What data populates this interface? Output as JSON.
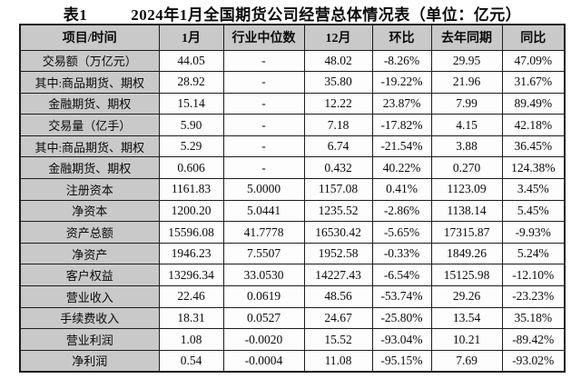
{
  "page": {
    "table_label": "表1",
    "title": "2024年1月全国期货公司经营总体情况表（单位：亿元）"
  },
  "chart_data": {
    "type": "table",
    "title": "2024年1月全国期货公司经营总体情况表（单位：亿元）",
    "columns": [
      "项目/时间",
      "1月",
      "行业中位数",
      "12月",
      "环比",
      "去年同期",
      "同比"
    ],
    "rows": [
      [
        "交易额（万亿元）",
        "44.05",
        "-",
        "48.02",
        "-8.26%",
        "29.95",
        "47.09%"
      ],
      [
        "其中:商品期货、期权",
        "28.92",
        "-",
        "35.80",
        "-19.22%",
        "21.96",
        "31.67%"
      ],
      [
        "金融期货、期权",
        "15.14",
        "-",
        "12.22",
        "23.87%",
        "7.99",
        "89.49%"
      ],
      [
        "交易量（亿手）",
        "5.90",
        "-",
        "7.18",
        "-17.82%",
        "4.15",
        "42.18%"
      ],
      [
        "其中:商品期货、期权",
        "5.29",
        "-",
        "6.74",
        "-21.54%",
        "3.88",
        "36.45%"
      ],
      [
        "金融期货、期权",
        "0.606",
        "-",
        "0.432",
        "40.22%",
        "0.270",
        "124.38%"
      ],
      [
        "注册资本",
        "1161.83",
        "5.0000",
        "1157.08",
        "0.41%",
        "1123.09",
        "3.45%"
      ],
      [
        "净资本",
        "1200.20",
        "5.0441",
        "1235.52",
        "-2.86%",
        "1138.14",
        "5.45%"
      ],
      [
        "资产总额",
        "15596.08",
        "41.7778",
        "16530.42",
        "-5.65%",
        "17315.87",
        "-9.93%"
      ],
      [
        "净资产",
        "1946.23",
        "7.5507",
        "1952.58",
        "-0.33%",
        "1849.26",
        "5.24%"
      ],
      [
        "客户权益",
        "13296.34",
        "33.0530",
        "14227.43",
        "-6.54%",
        "15125.98",
        "-12.10%"
      ],
      [
        "营业收入",
        "22.46",
        "0.0619",
        "48.56",
        "-53.74%",
        "29.26",
        "-23.23%"
      ],
      [
        "手续费收入",
        "18.31",
        "0.0527",
        "24.67",
        "-25.80%",
        "13.54",
        "35.18%"
      ],
      [
        "营业利润",
        "1.08",
        "-0.0020",
        "15.52",
        "-93.04%",
        "10.21",
        "-89.42%"
      ],
      [
        "净利润",
        "0.54",
        "-0.0004",
        "11.08",
        "-95.15%",
        "7.69",
        "-93.02%"
      ]
    ]
  },
  "colors": {
    "header_bg": "#c9c9c9",
    "label_bg": "#c9c9c9",
    "cell_bg": "#fdfdfd",
    "border": "#1c1c1c",
    "text": "#0a0a0a"
  }
}
